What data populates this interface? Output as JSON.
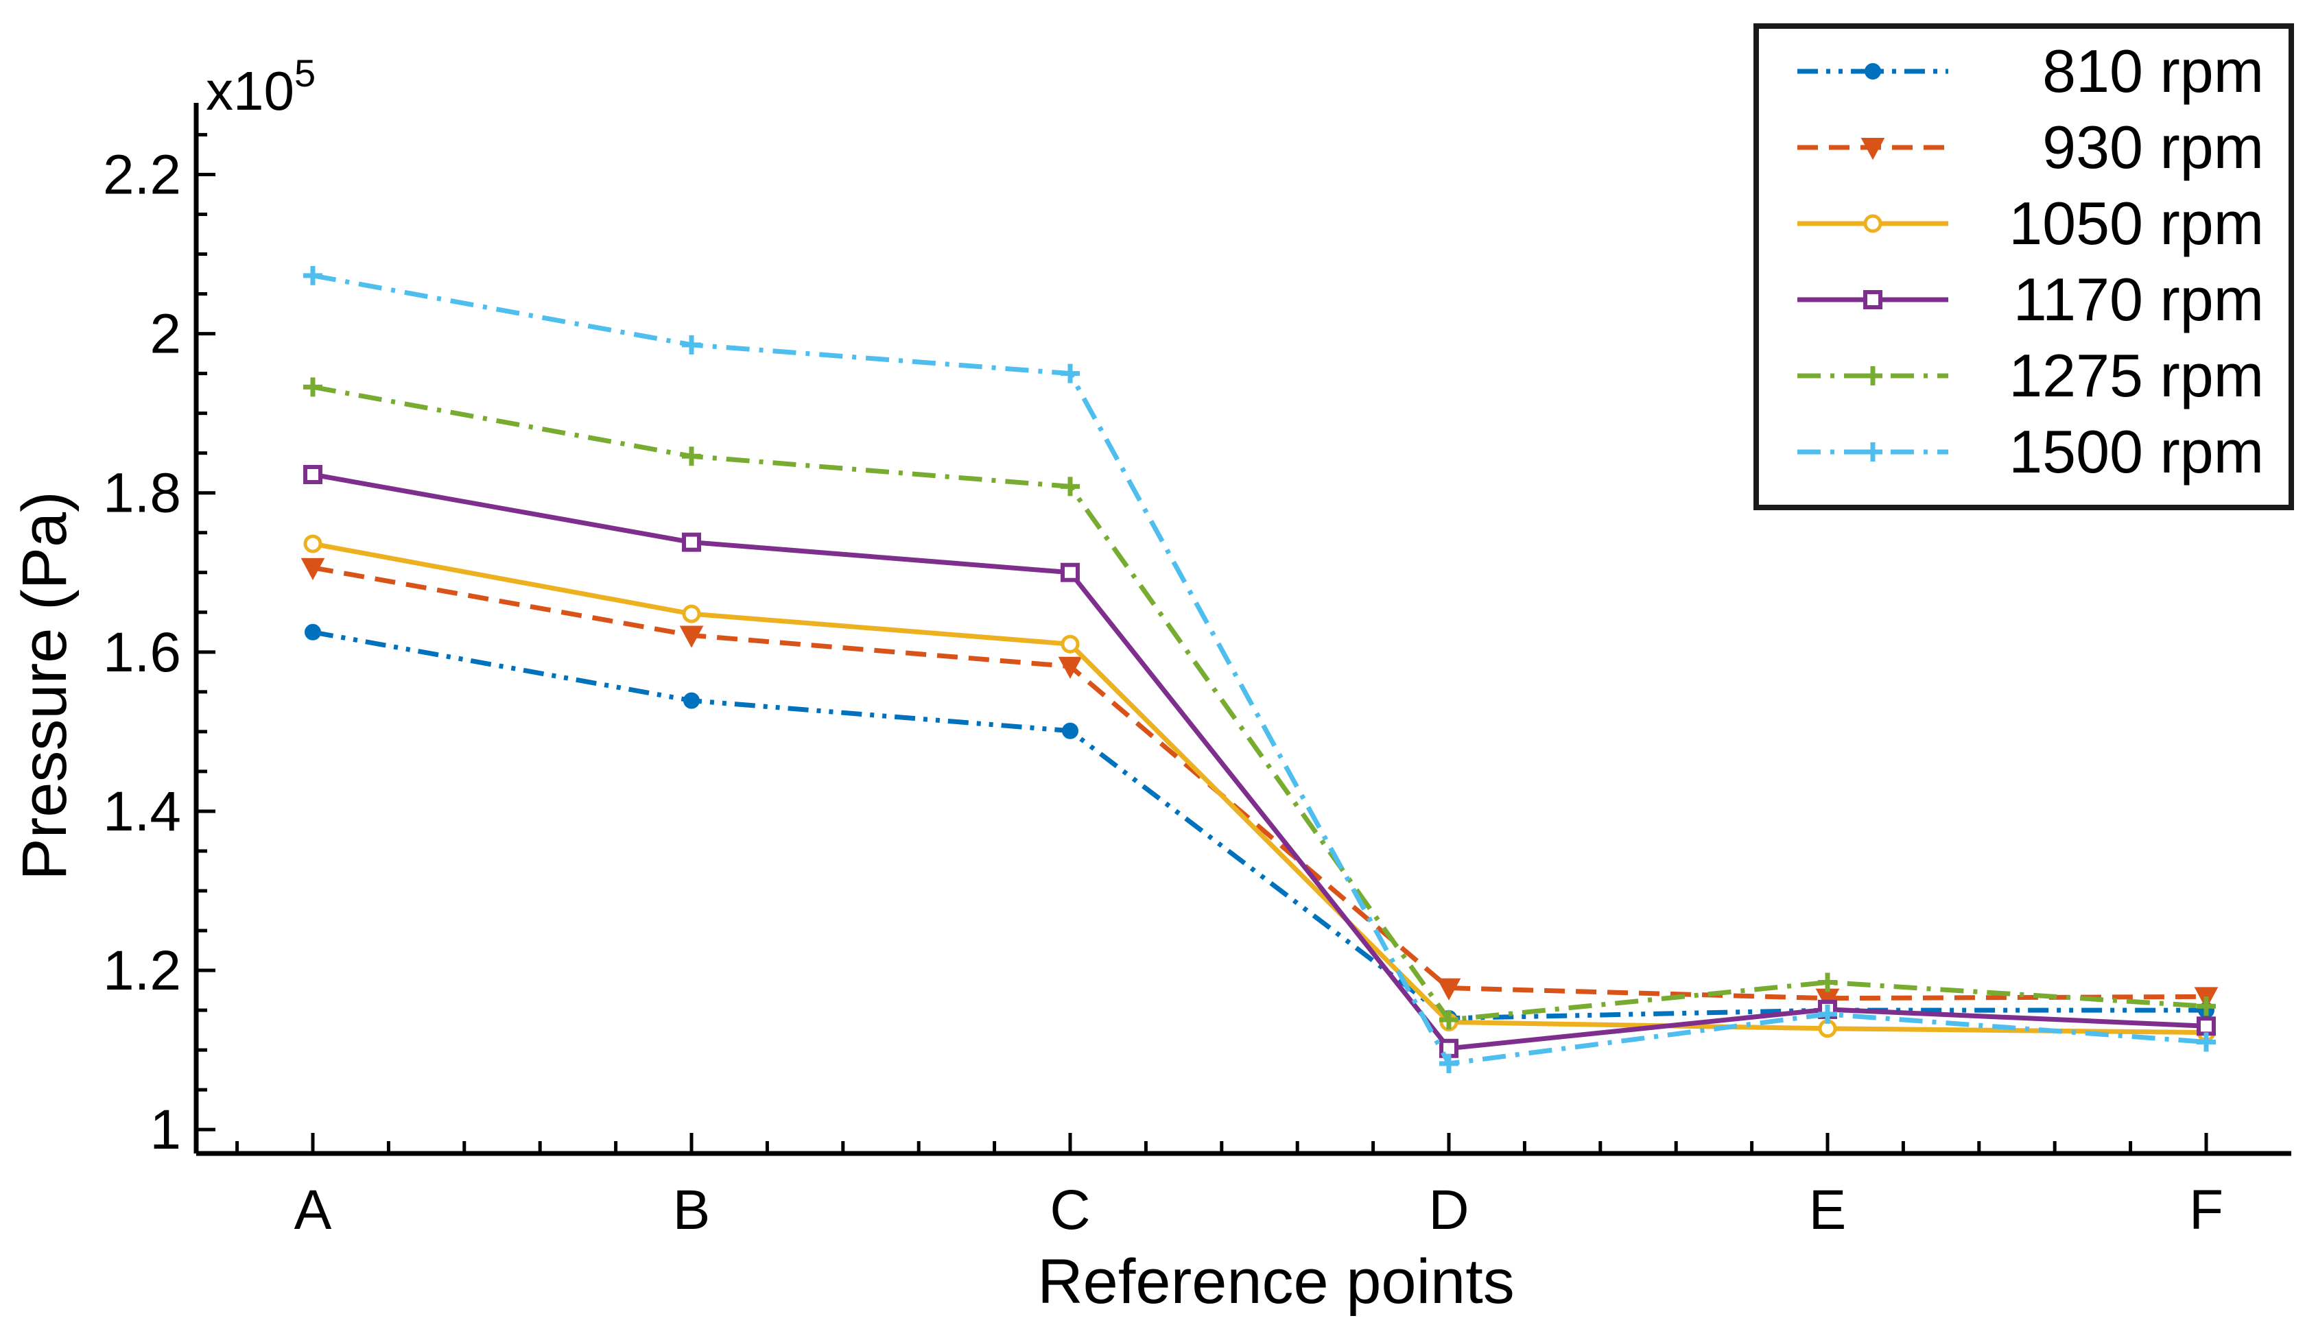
{
  "chart_data": {
    "type": "line",
    "title": "",
    "xlabel": "Reference points",
    "ylabel": "Pressure (Pa)",
    "y_multiplier": "x10",
    "y_multiplier_exponent": "5",
    "categories": [
      "A",
      "B",
      "C",
      "D",
      "E",
      "F"
    ],
    "ylim": [
      0.97,
      2.29
    ],
    "yticks": [
      1,
      1.2,
      1.4,
      1.6,
      1.8,
      2,
      2.2
    ],
    "ytick_labels": [
      "1",
      "1.2",
      "1.4",
      "1.6",
      "1.8",
      "2",
      "2.2"
    ],
    "grid": false,
    "legend_position": "top-right",
    "series": [
      {
        "name": "810 rpm",
        "color": "#0072BD",
        "dash": "dashdotdot",
        "marker": "dot-star",
        "values": [
          1.625,
          1.539,
          1.501,
          1.14,
          1.15,
          1.15
        ]
      },
      {
        "name": "930 rpm",
        "color": "#D95319",
        "dash": "dashed",
        "marker": "triangle-down",
        "values": [
          1.706,
          1.621,
          1.582,
          1.178,
          1.165,
          1.167
        ]
      },
      {
        "name": "1050 rpm",
        "color": "#EDB120",
        "dash": "solid",
        "marker": "circle",
        "values": [
          1.736,
          1.648,
          1.61,
          1.135,
          1.127,
          1.122
        ]
      },
      {
        "name": "1170 rpm",
        "color": "#7E2F8E",
        "dash": "solid",
        "marker": "square",
        "values": [
          1.823,
          1.738,
          1.7,
          1.102,
          1.151,
          1.13
        ]
      },
      {
        "name": "1275 rpm",
        "color": "#77AC30",
        "dash": "dashdot",
        "marker": "plus",
        "values": [
          1.933,
          1.846,
          1.808,
          1.138,
          1.185,
          1.155
        ]
      },
      {
        "name": "1500 rpm",
        "color": "#4DBEEE",
        "dash": "dashdot",
        "marker": "plus",
        "values": [
          2.073,
          1.986,
          1.95,
          1.083,
          1.145,
          1.11
        ]
      }
    ]
  }
}
